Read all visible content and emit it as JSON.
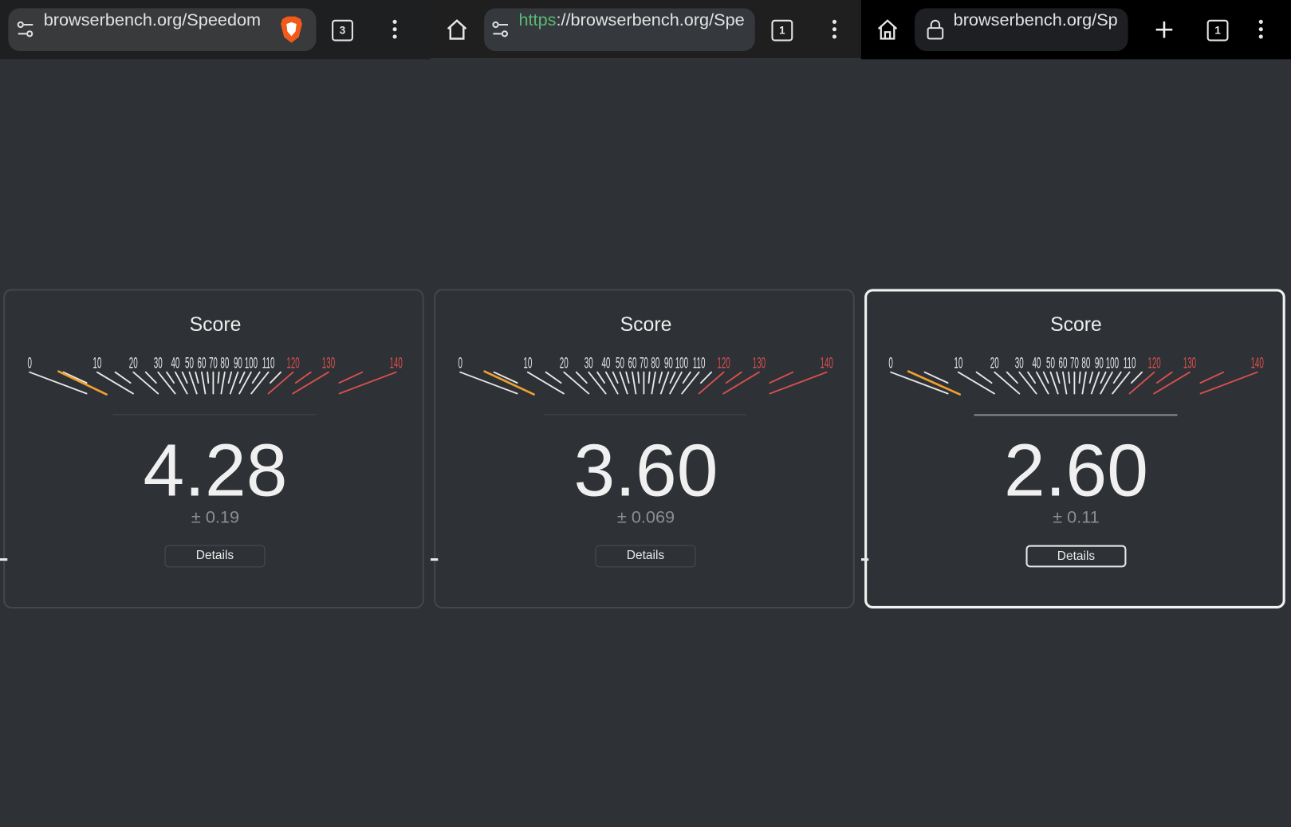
{
  "colors": {
    "accent_needle": "#f0a030",
    "redline": "#d95050",
    "tick": "#e8e8e8",
    "background": "#2e3135"
  },
  "gauge": {
    "labels": [
      0,
      10,
      20,
      30,
      40,
      50,
      60,
      70,
      80,
      90,
      100,
      110,
      120,
      130,
      140
    ],
    "redline_from": 120
  },
  "panels": [
    {
      "browser_icon": "brave-lion-icon",
      "url": "browserbench.org/Speedom",
      "url_scheme": "",
      "tab_count": "3",
      "title": "Score",
      "score": "4.28",
      "score_value": 4.28,
      "error": "± 0.19",
      "details_label": "Details",
      "selected": false
    },
    {
      "browser_icon": "",
      "url": "://browserbench.org/Spe",
      "url_scheme": "https",
      "tab_count": "1",
      "title": "Score",
      "score": "3.60",
      "score_value": 3.6,
      "error": "± 0.069",
      "details_label": "Details",
      "selected": false
    },
    {
      "browser_icon": "",
      "url": "browserbench.org/Sp",
      "url_scheme": "",
      "tab_count": "1",
      "title": "Score",
      "score": "2.60",
      "score_value": 2.6,
      "error": "± 0.11",
      "details_label": "Details",
      "selected": true
    }
  ]
}
